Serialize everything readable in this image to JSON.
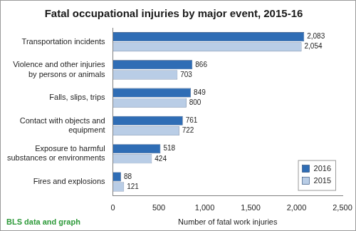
{
  "chart_data": {
    "type": "bar",
    "title": "Fatal occupational injuries by major event, 2015-16",
    "x_label": "Number of fatal work injuries",
    "annotation": "BLS data and graph",
    "orientation": "horizontal",
    "categories": [
      "Transportation incidents",
      "Violence and other injuries by persons or animals",
      "Falls, slips, trips",
      "Contact with objects and equipment",
      "Exposure to harmful substances or environments",
      "Fires and explosions"
    ],
    "series": [
      {
        "name": "2016",
        "color": "#2f6db5",
        "values": [
          2083,
          866,
          849,
          761,
          518,
          88
        ],
        "value_labels": [
          "2,083",
          "866",
          "849",
          "761",
          "518",
          "88"
        ]
      },
      {
        "name": "2015",
        "color": "#b9cde6",
        "values": [
          2054,
          703,
          800,
          722,
          424,
          121
        ],
        "value_labels": [
          "2,054",
          "703",
          "800",
          "722",
          "424",
          "121"
        ]
      }
    ],
    "xlim": [
      0,
      2500
    ],
    "xticks": [
      0,
      500,
      {
        "value": 1000,
        "label": "1,000"
      },
      {
        "value": 1500,
        "label": "1,500"
      },
      {
        "value": 2000,
        "label": "2,000"
      },
      {
        "value": 2500,
        "label": "2,500"
      }
    ],
    "grid": false,
    "legend": "lower right",
    "data_labels": true
  }
}
